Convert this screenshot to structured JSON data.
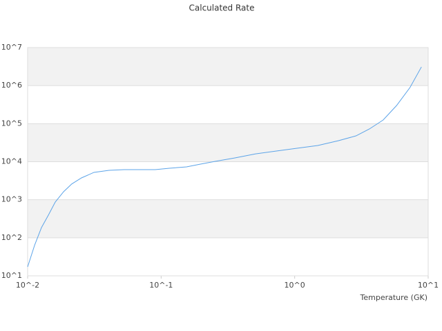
{
  "chart_data": {
    "type": "line",
    "title": "Calculated Rate",
    "x_label": "Temperature (GK)",
    "log_x": true,
    "log_y": true,
    "grid": true,
    "alternating_bands": true,
    "xlim": [
      0.01,
      10
    ],
    "ylim": [
      10,
      10000000
    ],
    "xticks": [
      {
        "value": 0.01,
        "label": "10^-2"
      },
      {
        "value": 0.1,
        "label": "10^-1"
      },
      {
        "value": 1,
        "label": "10^0"
      },
      {
        "value": 10,
        "label": "10^1"
      }
    ],
    "yticks": [
      {
        "value": 10,
        "label": "10^1"
      },
      {
        "value": 100,
        "label": "10^2"
      },
      {
        "value": 1000,
        "label": "10^3"
      },
      {
        "value": 10000,
        "label": "10^4"
      },
      {
        "value": 100000,
        "label": "10^5"
      },
      {
        "value": 1000000,
        "label": "10^6"
      },
      {
        "value": 10000000,
        "label": "10^7"
      }
    ],
    "x": [
      0.01,
      0.0113,
      0.0127,
      0.0143,
      0.0161,
      0.0186,
      0.0214,
      0.0253,
      0.0314,
      0.0407,
      0.0529,
      0.0903,
      0.115,
      0.155,
      0.197,
      0.254,
      0.357,
      0.51,
      0.73,
      1.04,
      1.49,
      2.13,
      2.88,
      3.63,
      4.6,
      5.8,
      7.3,
      8.9
    ],
    "series": [
      {
        "color": "#5ba3e8",
        "values": [
          17.2,
          65,
          186,
          394,
          870,
          1630,
          2600,
          3750,
          5240,
          5930,
          6180,
          6180,
          6730,
          7310,
          8630,
          10200,
          12600,
          16100,
          19100,
          22600,
          26700,
          35700,
          47800,
          72600,
          125000,
          300000,
          888000,
          3100000
        ]
      }
    ]
  }
}
